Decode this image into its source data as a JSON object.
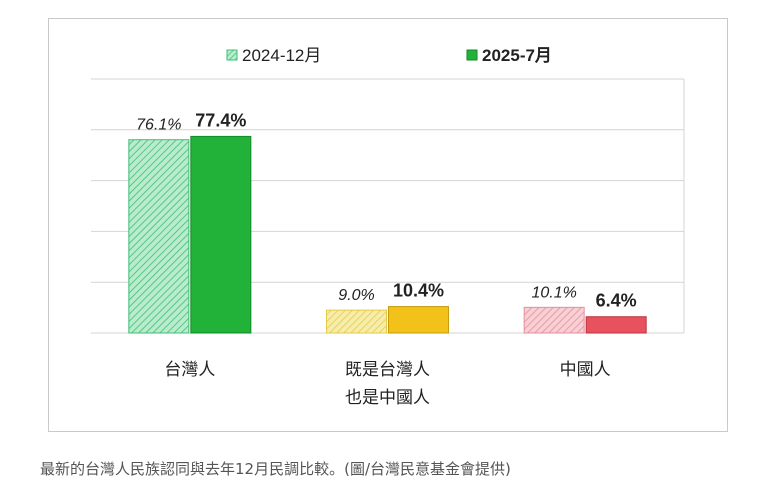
{
  "chart_data": {
    "type": "bar",
    "categories": [
      [
        "台灣人"
      ],
      [
        "既是台灣人",
        "也是中國人"
      ],
      [
        "中國人"
      ]
    ],
    "series": [
      {
        "name": "2024-12月",
        "values": [
          76.1,
          9.0,
          10.1
        ],
        "labels": [
          "76.1%",
          "9.0%",
          "10.1%"
        ]
      },
      {
        "name": "2025-7月",
        "values": [
          77.4,
          10.4,
          6.4
        ],
        "labels": [
          "77.4%",
          "10.4%",
          "6.4%"
        ]
      }
    ],
    "ylim": [
      0,
      100
    ],
    "grid": true,
    "legend": "top",
    "colors": {
      "2024-12": [
        "#b9ebcd",
        "#f7edaa",
        "#f7cfd4"
      ],
      "2024-12-hatch": [
        "#3fbf73",
        "#e5c94a",
        "#e58f9a"
      ],
      "2025-7": [
        "#22b23a",
        "#f2c21a",
        "#e8525e"
      ],
      "2025-7-edge": [
        "#138a26",
        "#c89a0e",
        "#b8323e"
      ],
      "grid": "#d4d4d4",
      "text": "#222222"
    }
  },
  "caption": "最新的台灣人民族認同與去年12月民調比較。(圖/台灣民意基金會提供)"
}
